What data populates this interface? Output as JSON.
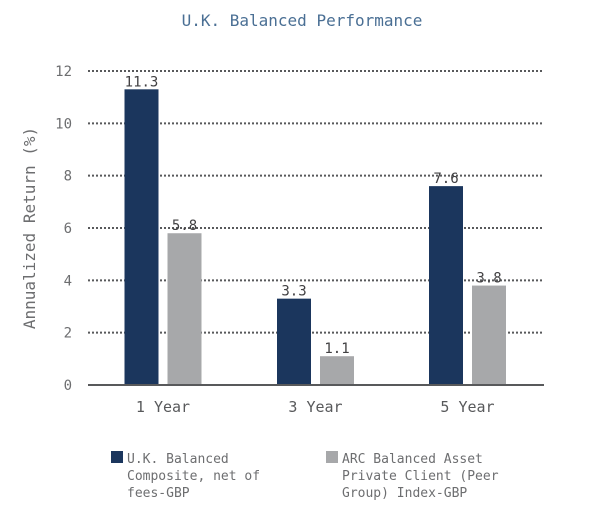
{
  "chart_data": {
    "type": "bar",
    "title": "U.K. Balanced Performance",
    "xlabel": "",
    "ylabel": "Annualized Return (%)",
    "ylim": [
      0,
      12
    ],
    "yticks": [
      "0",
      "2",
      "4",
      "6",
      "8",
      "10",
      "12"
    ],
    "grid": true,
    "legend_position": "bottom",
    "categories": [
      "1 Year",
      "3 Year",
      "5 Year"
    ],
    "series": [
      {
        "name": "U.K. Balanced Composite, net of fees-GBP",
        "legend_lines": [
          "U.K. Balanced",
          "Composite, net of",
          "fees-GBP"
        ],
        "color": "#1b365d",
        "values": [
          11.3,
          3.3,
          7.6
        ],
        "labels": [
          "11.3",
          "3.3",
          "7.6"
        ]
      },
      {
        "name": "ARC Balanced Asset Private Client (Peer Group) Index-GBP",
        "legend_lines": [
          "ARC Balanced Asset",
          "Private Client (Peer",
          "Group) Index-GBP"
        ],
        "color": "#a7a8aa",
        "values": [
          5.8,
          1.1,
          3.8
        ],
        "labels": [
          "5.8",
          "1.1",
          "3.8"
        ]
      }
    ]
  }
}
